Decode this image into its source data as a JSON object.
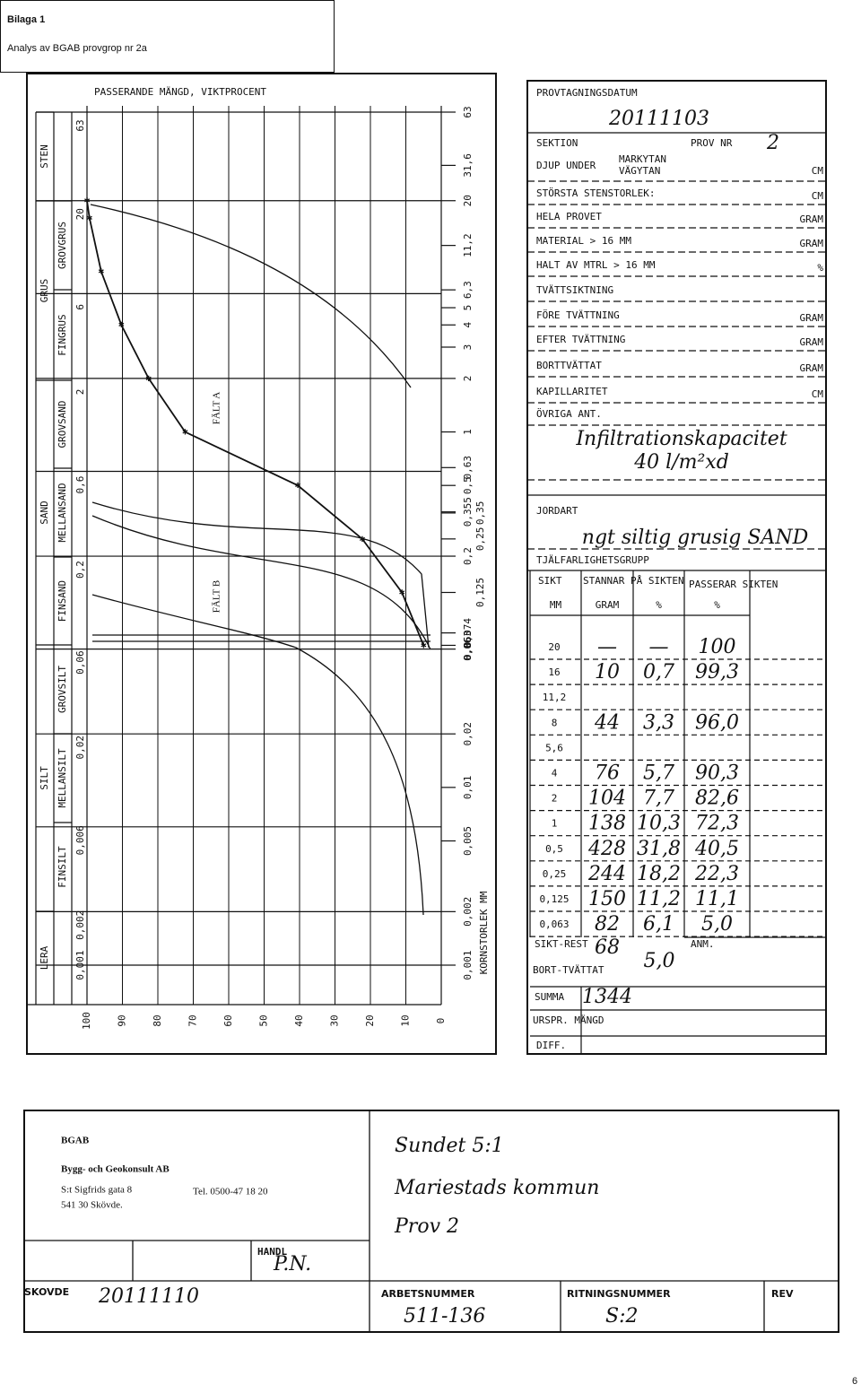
{
  "header": {
    "title": "Bilaga 1",
    "subtitle": "Analys av BGAB provgrop nr 2a"
  },
  "chart_data": {
    "type": "line",
    "title": "PASSERANDE MÄNGD, VIKTPROCENT",
    "x_label": "KORNSTORLEK MM",
    "xscale": "log",
    "x": [
      20,
      16,
      8,
      4,
      2,
      1,
      0.5,
      0.25,
      0.125,
      0.063
    ],
    "values": [
      100,
      99.3,
      96.0,
      90.3,
      82.6,
      72.3,
      40.5,
      22.3,
      11.1,
      5.0
    ],
    "color": "#111111",
    "xlim": [
      63,
      0.001
    ],
    "ylim": [
      100,
      0
    ],
    "yticks": [
      100,
      90,
      80,
      70,
      60,
      50,
      40,
      30,
      20,
      10,
      0
    ],
    "xticks": [
      63,
      20,
      6,
      2,
      {
        "value": 0.6,
        "label": "0,6"
      },
      {
        "value": 0.2,
        "label": "0,2"
      },
      {
        "value": 0.06,
        "label": "0,06"
      },
      {
        "value": 0.02,
        "label": "0,02"
      },
      {
        "value": 0.006,
        "label": "0,006"
      },
      {
        "value": 0.002,
        "label": "0,002"
      },
      {
        "value": 0.001,
        "label": "0,001"
      }
    ],
    "sieve_ticks": [
      63,
      {
        "value": 31.6,
        "label": "31,6"
      },
      20,
      {
        "value": 11.2,
        "label": "11,2"
      },
      {
        "value": 6.3,
        "label": "6,3"
      },
      5,
      4,
      3,
      2,
      1,
      {
        "value": 0.63,
        "label": "0,63"
      },
      {
        "value": 0.5,
        "label": "0,5"
      },
      {
        "value": 0.355,
        "label": "0,355"
      },
      {
        "value": 0.35,
        "label": "0,35"
      },
      {
        "value": 0.25,
        "label": "0,25"
      },
      {
        "value": 0.2,
        "label": "0,2"
      },
      {
        "value": 0.125,
        "label": "0,125"
      },
      {
        "value": 0.074,
        "label": "0,074"
      },
      {
        "value": 0.063,
        "label": "0,063"
      },
      {
        "value": 0.06,
        "label": "0,06"
      },
      {
        "value": 0.02,
        "label": "0,02"
      },
      {
        "value": 0.01,
        "label": "0,01"
      },
      {
        "value": 0.005,
        "label": "0,005"
      },
      {
        "value": 0.002,
        "label": "0,002"
      },
      {
        "value": 0.001,
        "label": "0,001"
      }
    ],
    "soil_classes": [
      "STEN",
      "GRUS",
      "SAND",
      "SILT",
      "LERA"
    ],
    "soil_subclasses": [
      "GROVGRUS",
      "FINGRUS",
      "GROVSAND",
      "MELLANSAND",
      "FINSAND",
      "GROVSILT",
      "MELLANSILT",
      "FINSILT"
    ],
    "annotations": [
      "FÄLT A",
      "FÄLT B"
    ]
  },
  "form": {
    "sampling_date_label": "PROVTAGNINGSDATUM",
    "sampling_date": "20111103",
    "section_label": "SEKTION",
    "sample_no_label": "PROV NR",
    "sample_no": "2",
    "depth_label": "DJUP UNDER",
    "depth_ref": [
      "MARKYTAN",
      "VÄGYTAN"
    ],
    "depth_unit": "CM",
    "rows": [
      {
        "label": "STÖRSTA STENSTORLEK:",
        "unit": "CM"
      },
      {
        "label": "HELA PROVET",
        "unit": "GRAM"
      },
      {
        "label": "MATERIAL  > 16 MM",
        "unit": "GRAM"
      },
      {
        "label": "HALT AV MTRL  > 16 MM",
        "unit": "%"
      },
      {
        "label": "TVÄTTSIKTNING"
      },
      {
        "label": "FÖRE TVÄTTNING",
        "unit": "GRAM"
      },
      {
        "label": "EFTER TVÄTTNING",
        "unit": "GRAM"
      },
      {
        "label": "BORTTVÄTTAT",
        "unit": "GRAM"
      },
      {
        "label": "KAPILLARITET",
        "unit": "CM"
      },
      {
        "label": "ÖVRIGA ANT."
      }
    ],
    "notes": [
      "Infiltrationskapacitet",
      "40 l/m²xd"
    ],
    "soil_type_label": "JORDART",
    "soil_type": "ngt siltig grusig SAND",
    "frost_group_label": "TJÄLFARLIGHETSGRUPP"
  },
  "sieve_table": {
    "headers": [
      "SIKT",
      "STANNAR PÅ SIKTEN",
      "PASSERAR SIKTEN"
    ],
    "units": [
      "MM",
      "GRAM",
      "%",
      "%"
    ],
    "rows": [
      [
        "20",
        "—",
        "—",
        "100"
      ],
      [
        "16",
        "10",
        "0,7",
        "99,3"
      ],
      [
        "11,2",
        null,
        null,
        null
      ],
      [
        "8",
        "44",
        "3,3",
        "96,0"
      ],
      [
        "5,6",
        null,
        null,
        null
      ],
      [
        "4",
        "76",
        "5,7",
        "90,3"
      ],
      [
        "2",
        "104",
        "7,7",
        "82,6"
      ],
      [
        "1",
        "138",
        "10,3",
        "72,3"
      ],
      [
        "0,5",
        "428",
        "31,8",
        "40,5"
      ],
      [
        "0,25",
        "244",
        "18,2",
        "22,3"
      ],
      [
        "0,125",
        "150",
        "11,2",
        "11,1"
      ],
      [
        "0,063",
        "82",
        "6,1",
        "5,0"
      ]
    ],
    "residue_label": "SIKT-REST",
    "residue": "68",
    "washed_label": "BORT-TVÄTTAT",
    "residue_pct": "5,0",
    "sum_label": "SUMMA",
    "sum": "1344",
    "original_label": "URSPR. MÄNGD",
    "diff_label": "DIFF.",
    "remark_label": "ANM."
  },
  "title_block": {
    "company": "BGAB",
    "company_full": "Bygg- och Geokonsult AB",
    "address": "S:t Sigfrids gata 8",
    "phone": "Tel. 0500-47 18 20",
    "city": "541 30 Skövde.",
    "location": [
      "Sundet 5:1",
      "Mariestads kommun",
      "Prov 2"
    ],
    "handler_label": "HANDL",
    "handler": "P.N.",
    "place_label": "SKOVDE",
    "date": "20111110",
    "job_no_label": "ARBETSNUMMER",
    "job_no": "511-136",
    "drawing_no_label": "RITNINGSNUMMER",
    "drawing_no": "S:2",
    "rev_label": "REV"
  },
  "page_number": "6"
}
